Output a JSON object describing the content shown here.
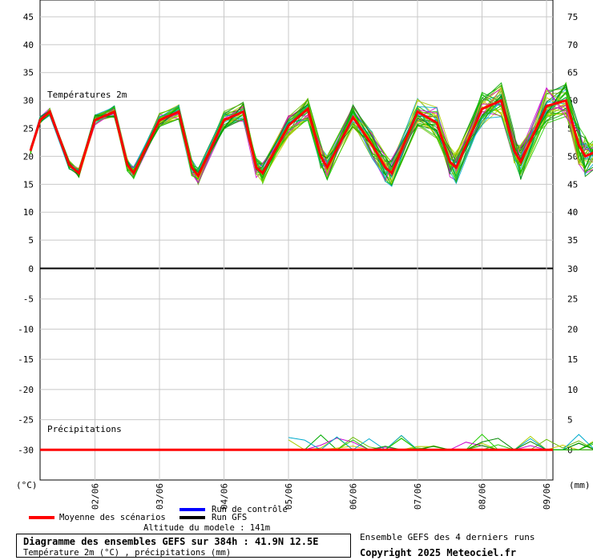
{
  "chart_data": [
    {
      "type": "line",
      "title": "Températures 2m",
      "ylabel": "(°C)",
      "ylabel_right": "",
      "ylim": [
        0,
        48
      ],
      "yticks_left": [
        45,
        40,
        35,
        30,
        25,
        20,
        15,
        10,
        5
      ],
      "yticks_right": [
        75,
        70,
        65,
        60,
        55,
        50,
        45,
        40,
        35
      ],
      "grid": true,
      "mean_series": {
        "name": "Moyenne des scénarios",
        "color": "#ff0000",
        "x": [
          0,
          0.15,
          0.3,
          0.6,
          0.75,
          1.0,
          1.3,
          1.5,
          1.6,
          2.0,
          2.3,
          2.5,
          2.6,
          3.0,
          3.3,
          3.5,
          3.6,
          4.0,
          4.3,
          4.5,
          4.6,
          5.0,
          5.3,
          5.5,
          5.6,
          6.0,
          6.3,
          6.5,
          6.6,
          7.0,
          7.3,
          7.5,
          7.6,
          8.0,
          8.3,
          8.5,
          8.6,
          8.8,
          9.0,
          9.15
        ],
        "values": [
          21,
          26.5,
          28,
          18.5,
          17,
          26.5,
          28,
          18.5,
          17,
          26.5,
          28,
          18,
          16.5,
          26.5,
          28,
          18,
          17,
          25.5,
          28.5,
          20,
          18,
          27,
          22,
          18,
          17,
          28,
          26,
          19,
          18,
          28.5,
          30,
          21,
          19,
          29,
          30,
          22,
          20,
          21,
          18,
          21
        ]
      },
      "ensemble": {
        "colors": [
          "#00aa00",
          "#22cc00",
          "#66bb00",
          "#aacc00",
          "#cccc00",
          "#cc00cc",
          "#00aacc",
          "#008800"
        ]
      }
    },
    {
      "type": "line",
      "title": "Précipitations",
      "ylabel": "",
      "ylabel_right": "(mm)",
      "ylim": [
        -35,
        0
      ],
      "yticks_left": [
        0,
        -5,
        -10,
        -15,
        -20,
        -25,
        -30
      ],
      "yticks_right": [
        30,
        25,
        20,
        15,
        10,
        5,
        0
      ],
      "grid": true,
      "mean_series": {
        "name": "Moyenne des scénarios",
        "color": "#ff0000",
        "value": 0
      }
    }
  ],
  "x_axis": {
    "ticks": [
      "02/06",
      "03/06",
      "04/06",
      "05/06",
      "06/06",
      "07/06",
      "08/06",
      "09/06"
    ]
  },
  "legend": {
    "mean": "Moyenne des scénarios",
    "mean_color": "#ff0000",
    "control": "Run de contrôle",
    "control_color": "#0000ff",
    "gfs": "Run GFS",
    "gfs_color": "#000000"
  },
  "footer": {
    "altitude": "Altitude du modele : 141m",
    "title": "Diagramme des ensembles GEFS sur 384h : 41.9N 12.5E",
    "subtitle": "Température 2m (°C) , précipitations (mm)",
    "runs_note": "Ensemble GEFS des 4 derniers runs",
    "copyright": "Copyright 2025 Meteociel.fr"
  }
}
